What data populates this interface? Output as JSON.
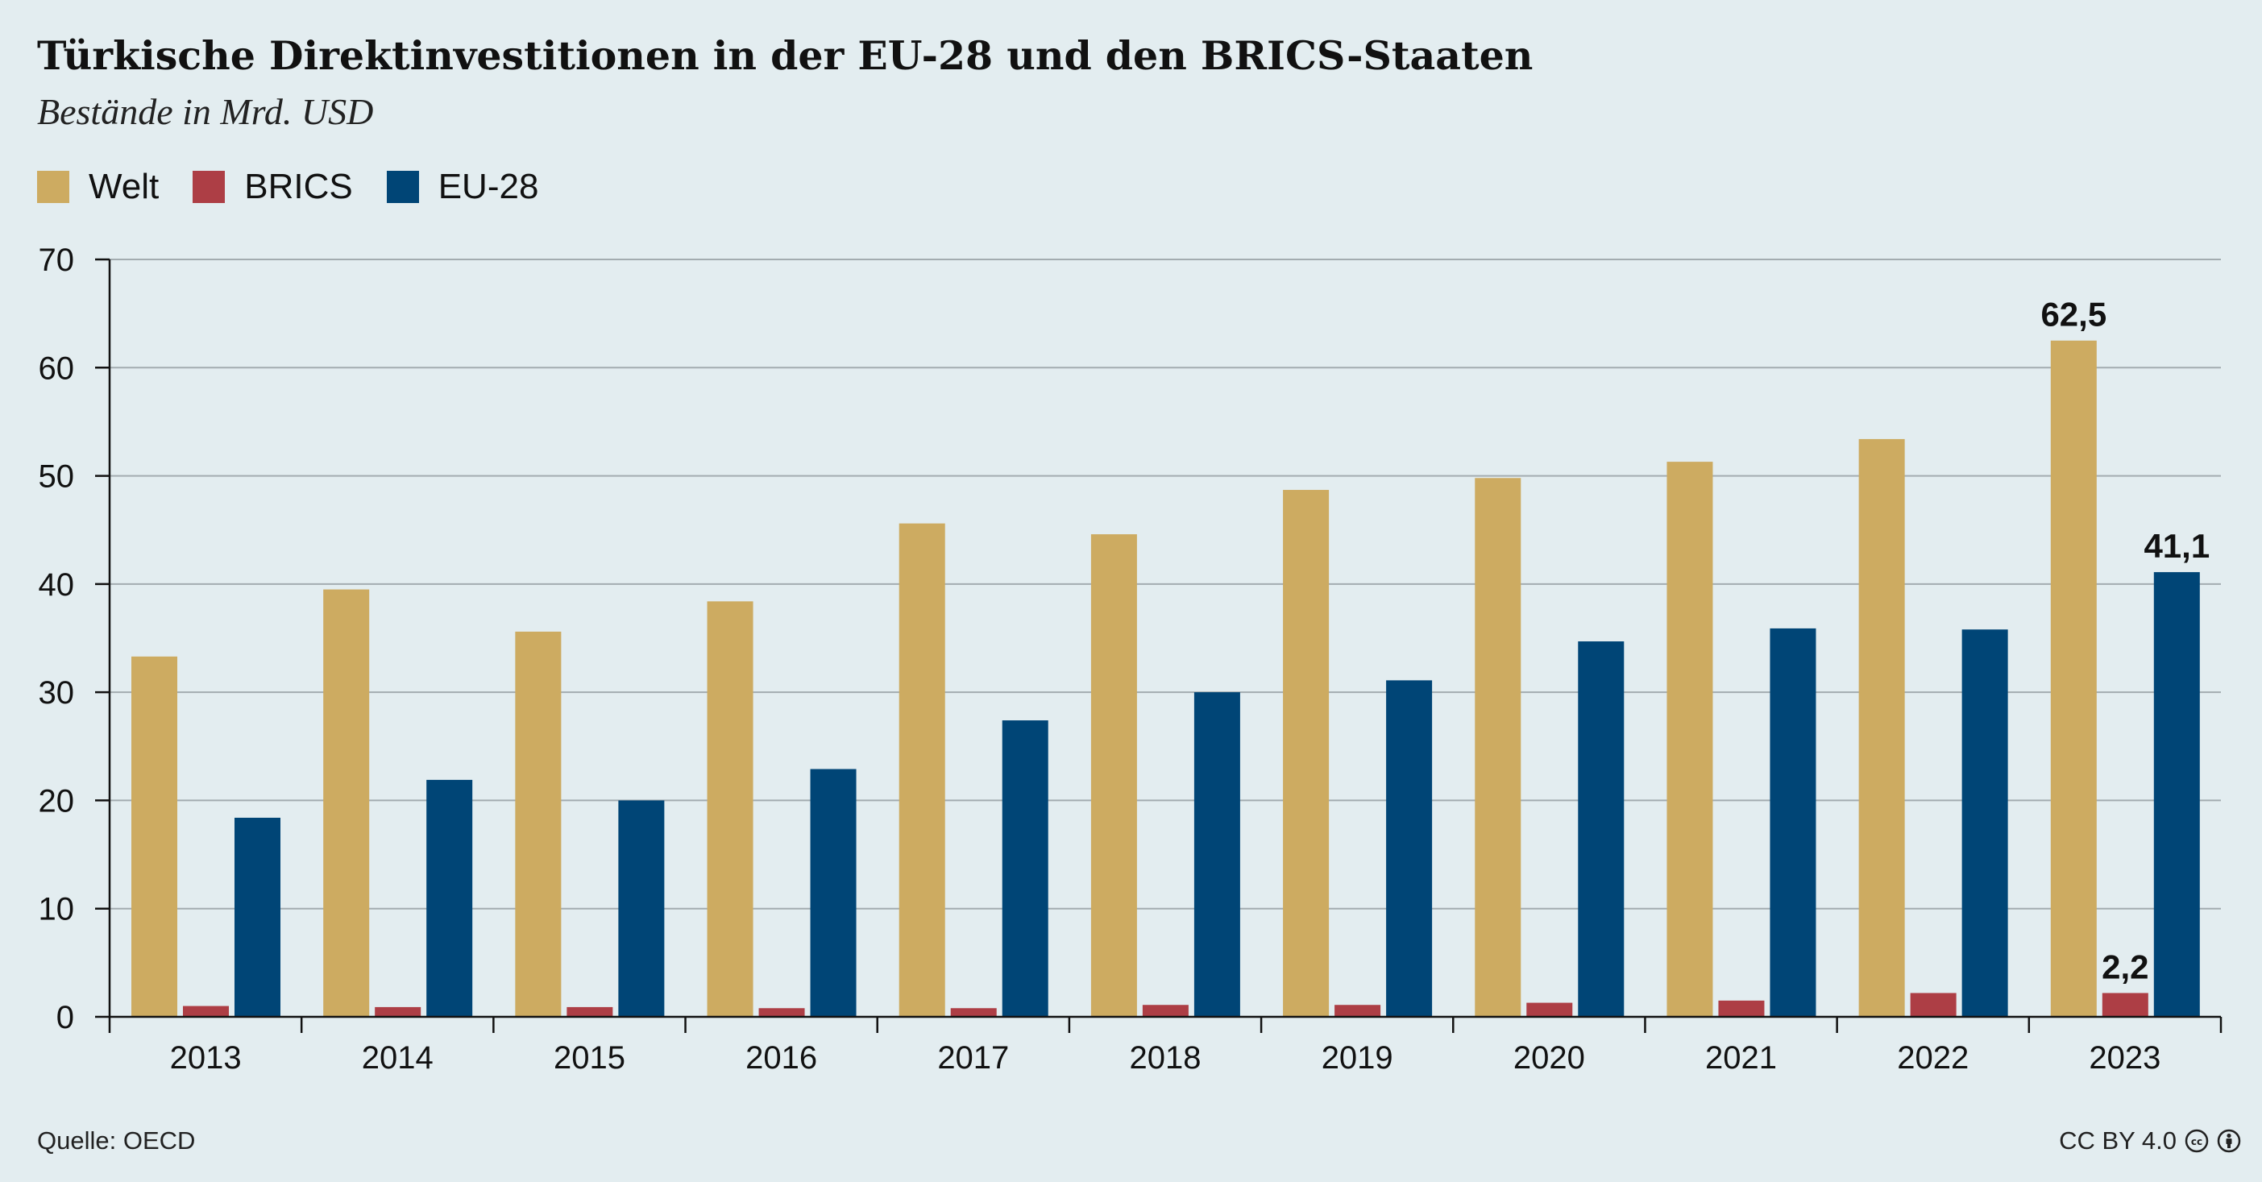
{
  "title": "Türkische Direktinvestitionen in der EU-28 und den BRICS-Staaten",
  "subtitle": "Bestände in Mrd. USD",
  "source": "Quelle: OECD",
  "license": "CC BY 4.0",
  "license_icons": [
    "creative-commons-icon",
    "attribution-icon"
  ],
  "colors": {
    "welt": "#cdab61",
    "brics": "#ad3e45",
    "eu28": "#004576",
    "background": "#e3edf0",
    "grid": "#a3acb0"
  },
  "chart_data": {
    "type": "bar",
    "categories": [
      "2013",
      "2014",
      "2015",
      "2016",
      "2017",
      "2018",
      "2019",
      "2020",
      "2021",
      "2022",
      "2023"
    ],
    "series": [
      {
        "name": "Welt",
        "values": [
          33.3,
          39.5,
          35.6,
          38.4,
          45.6,
          44.6,
          48.7,
          49.8,
          51.3,
          53.4,
          62.5
        ]
      },
      {
        "name": "BRICS",
        "values": [
          1.0,
          0.9,
          0.9,
          0.8,
          0.8,
          1.1,
          1.1,
          1.3,
          1.5,
          2.2,
          2.2
        ]
      },
      {
        "name": "EU-28",
        "values": [
          18.4,
          21.9,
          20.0,
          22.9,
          27.4,
          30.0,
          31.1,
          34.7,
          35.9,
          35.8,
          41.1
        ]
      }
    ],
    "yticks": [
      0,
      10,
      20,
      30,
      40,
      50,
      60,
      70
    ],
    "ylim": [
      0,
      70
    ],
    "grid": true,
    "legend": "top-left",
    "annotations": [
      {
        "series": "Welt",
        "category": "2023",
        "label": "62,5"
      },
      {
        "series": "BRICS",
        "category": "2023",
        "label": "2,2"
      },
      {
        "series": "EU-28",
        "category": "2023",
        "label": "41,1"
      }
    ]
  }
}
